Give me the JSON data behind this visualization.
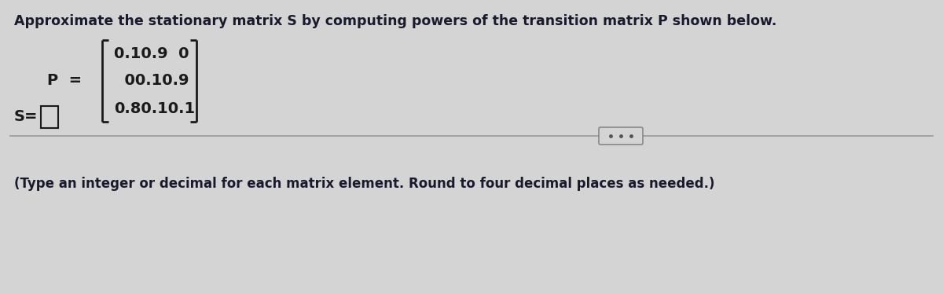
{
  "title": "Approximate the stationary matrix S by computing powers of the transition matrix P shown below.",
  "title_fontsize": 12.5,
  "title_color": "#1a1a2e",
  "bg_color": "#d4d4d4",
  "matrix_rows": [
    "0.10.9  0",
    "  00.10.9",
    "0.80.10.1"
  ],
  "matrix_fontsize": 14,
  "matrix_color": "#1a1a1a",
  "p_label": "P  =",
  "p_fontsize": 14,
  "s_label": "S=",
  "s_fontsize": 14,
  "footer": "(Type an integer or decimal for each matrix element. Round to four decimal places as needed.)",
  "footer_fontsize": 12,
  "footer_color": "#1a1a2e",
  "divider_color": "#999999",
  "divider_linewidth": 1.2,
  "dots_color": "#555555",
  "box_color": "#1a1a1a",
  "bracket_color": "#1a1a1a",
  "bracket_linewidth": 2.0
}
